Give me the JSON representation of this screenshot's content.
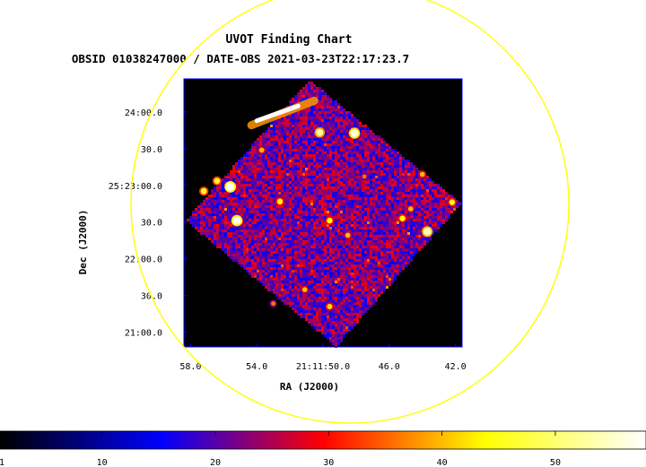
{
  "chart_data": {
    "type": "heatmap",
    "title": "UVOT Finding Chart",
    "subtitle": "OBSID 01038247000 / DATE-OBS 2021-03-23T22:17:23.7",
    "xlabel": "RA (J2000)",
    "ylabel": "Dec (J2000)",
    "x_ticks": [
      {
        "label": "58.0",
        "value": 58.0
      },
      {
        "label": "54.0",
        "value": 54.0
      },
      {
        "label": "21:11:50.0",
        "value": 50.0
      },
      {
        "label": "46.0",
        "value": 46.0
      },
      {
        "label": "42.0",
        "value": 42.0
      }
    ],
    "y_ticks": [
      {
        "label": "24:00.0",
        "value": 24.0
      },
      {
        "label": "30.0",
        "value": 23.5
      },
      {
        "label": "25:23:00.0",
        "value": 23.0
      },
      {
        "label": "30.0",
        "value": 22.5
      },
      {
        "label": "22:00.0",
        "value": 22.0
      },
      {
        "label": "30.0",
        "value": 21.5
      },
      {
        "label": "21:00.0",
        "value": 21.0
      }
    ],
    "x_range": [
      58.4,
      41.6
    ],
    "y_range": [
      20.8,
      24.45
    ],
    "colorbar": {
      "ticks": [
        {
          "label": "1",
          "value": 1
        },
        {
          "label": "10",
          "value": 10
        },
        {
          "label": "20",
          "value": 20
        },
        {
          "label": "30",
          "value": 30
        },
        {
          "label": "40",
          "value": 40
        },
        {
          "label": "50",
          "value": 50
        }
      ],
      "range": [
        1,
        58
      ],
      "colors": [
        "#000000",
        "#0000ff",
        "#ff0000",
        "#ffff00",
        "#ffffff"
      ]
    },
    "background_level": 22,
    "sources": [
      {
        "ra": 50.2,
        "dec": 23.72,
        "level": 52
      },
      {
        "ra": 48.1,
        "dec": 23.71,
        "level": 56
      },
      {
        "ra": 53.7,
        "dec": 23.48,
        "level": 40
      },
      {
        "ra": 56.4,
        "dec": 23.06,
        "level": 46
      },
      {
        "ra": 55.6,
        "dec": 22.98,
        "level": 58
      },
      {
        "ra": 57.2,
        "dec": 22.92,
        "level": 46
      },
      {
        "ra": 52.6,
        "dec": 22.78,
        "level": 44
      },
      {
        "ra": 55.2,
        "dec": 22.52,
        "level": 57
      },
      {
        "ra": 49.6,
        "dec": 22.52,
        "level": 44
      },
      {
        "ra": 48.5,
        "dec": 22.32,
        "level": 40
      },
      {
        "ra": 43.7,
        "dec": 22.37,
        "level": 54
      },
      {
        "ra": 45.2,
        "dec": 22.55,
        "level": 44
      },
      {
        "ra": 44.7,
        "dec": 22.68,
        "level": 40
      },
      {
        "ra": 44.0,
        "dec": 23.15,
        "level": 40
      },
      {
        "ra": 51.1,
        "dec": 21.58,
        "level": 40
      },
      {
        "ra": 49.6,
        "dec": 21.35,
        "level": 42
      },
      {
        "ra": 53.0,
        "dec": 21.39,
        "level": 36
      },
      {
        "ra": 47.5,
        "dec": 23.12,
        "level": 36
      },
      {
        "ra": 42.2,
        "dec": 22.77,
        "level": 44
      }
    ],
    "streak": {
      "ra_start": 54.0,
      "dec_start": 23.88,
      "ra_end": 51.5,
      "dec_end": 24.08,
      "level": 58
    },
    "overlays": {
      "circle_color": "#ffff00",
      "frame_color": "#0000ff"
    }
  }
}
